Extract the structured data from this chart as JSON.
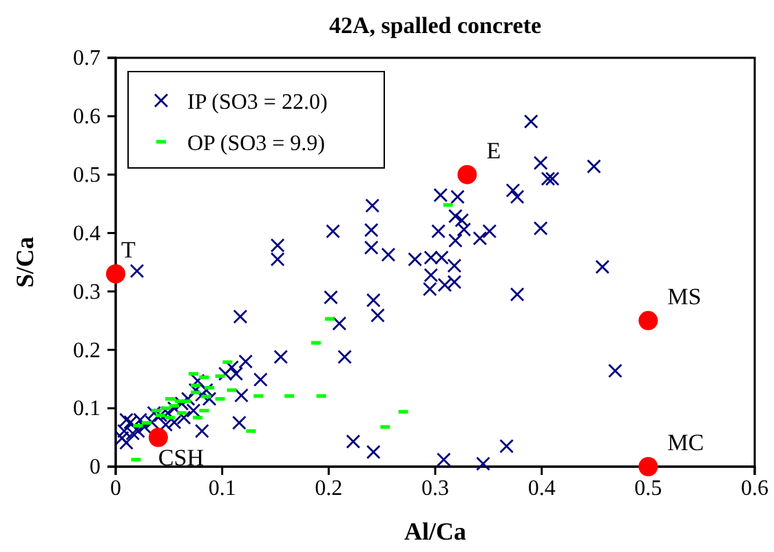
{
  "chart_data": {
    "type": "scatter",
    "title": "42A, spalled concrete",
    "xlabel": "Al/Ca",
    "ylabel": "S/Ca",
    "xlim": [
      0,
      0.6
    ],
    "xticks": [
      0,
      0.1,
      0.2,
      0.3,
      0.4,
      0.5,
      0.6
    ],
    "ylim": [
      0,
      0.7
    ],
    "yticks": [
      0,
      0.1,
      0.2,
      0.3,
      0.4,
      0.5,
      0.6,
      0.7
    ],
    "grid": false,
    "legend": "top left",
    "series": [
      {
        "name": "IP (SO3 = 22.0)",
        "color": "#000080",
        "marker": "cross",
        "x": [
          0.152,
          0.152,
          0.204,
          0.241,
          0.24,
          0.24,
          0.256,
          0.281,
          0.296,
          0.306,
          0.305,
          0.321,
          0.303,
          0.319,
          0.325,
          0.327,
          0.319,
          0.342,
          0.351,
          0.318,
          0.296,
          0.295,
          0.309,
          0.318,
          0.373,
          0.377,
          0.377,
          0.202,
          0.21,
          0.242,
          0.246,
          0.155,
          0.215,
          0.223,
          0.242,
          0.308,
          0.345,
          0.367,
          0.39,
          0.399,
          0.449,
          0.406,
          0.41,
          0.399,
          0.457,
          0.469,
          0.02,
          0.117,
          0.122,
          0.109,
          0.103,
          0.113,
          0.118,
          0.136,
          0.077,
          0.075,
          0.088,
          0.081,
          0.116,
          0.01,
          0.014,
          0.008,
          0.01,
          0.006,
          0.021,
          0.027,
          0.036,
          0.042,
          0.049,
          0.055,
          0.062,
          0.064,
          0.068,
          0.073,
          0.081,
          0.085,
          0.023,
          0.034,
          0.047,
          0.016,
          0.055
        ],
        "values": [
          0.379,
          0.355,
          0.403,
          0.447,
          0.405,
          0.375,
          0.363,
          0.355,
          0.358,
          0.358,
          0.465,
          0.462,
          0.403,
          0.429,
          0.422,
          0.406,
          0.387,
          0.391,
          0.403,
          0.344,
          0.328,
          0.304,
          0.311,
          0.316,
          0.473,
          0.462,
          0.295,
          0.29,
          0.245,
          0.285,
          0.259,
          0.188,
          0.188,
          0.043,
          0.025,
          0.012,
          0.005,
          0.035,
          0.591,
          0.52,
          0.514,
          0.493,
          0.493,
          0.408,
          0.342,
          0.164,
          0.335,
          0.257,
          0.18,
          0.17,
          0.159,
          0.159,
          0.122,
          0.149,
          0.147,
          0.131,
          0.116,
          0.061,
          0.075,
          0.08,
          0.076,
          0.061,
          0.041,
          0.049,
          0.061,
          0.068,
          0.092,
          0.088,
          0.092,
          0.1,
          0.108,
          0.084,
          0.116,
          0.096,
          0.123,
          0.131,
          0.08,
          0.076,
          0.072,
          0.057,
          0.076
        ]
      },
      {
        "name": "OP (SO3 = 9.9)",
        "color": "#00ff00",
        "marker": "square",
        "x": [
          0.312,
          0.201,
          0.188,
          0.163,
          0.193,
          0.27,
          0.253,
          0.019,
          0.021,
          0.029,
          0.038,
          0.042,
          0.051,
          0.047,
          0.055,
          0.06,
          0.066,
          0.051,
          0.062,
          0.073,
          0.083,
          0.075,
          0.088,
          0.075,
          0.085,
          0.098,
          0.083,
          0.077,
          0.105,
          0.109,
          0.127,
          0.134,
          0.098
        ],
        "values": [
          0.448,
          0.253,
          0.212,
          0.121,
          0.121,
          0.094,
          0.068,
          0.012,
          0.07,
          0.075,
          0.096,
          0.088,
          0.116,
          0.1,
          0.104,
          0.112,
          0.112,
          0.084,
          0.092,
          0.159,
          0.153,
          0.139,
          0.135,
          0.127,
          0.12,
          0.116,
          0.096,
          0.084,
          0.179,
          0.131,
          0.061,
          0.121,
          0.155
        ]
      },
      {
        "color": "#ff0000",
        "marker": "circle",
        "x": [
          0,
          0.33,
          0.5,
          0.5,
          0.04
        ],
        "values": [
          0.33,
          0.5,
          0.25,
          0,
          0.05
        ]
      }
    ],
    "annotations": [
      {
        "text": "T",
        "x": 0,
        "y": 0.33
      },
      {
        "text": "E",
        "x": 0.33,
        "y": 0.5
      },
      {
        "text": "MS",
        "x": 0.5,
        "y": 0.25
      },
      {
        "text": "MC",
        "x": 0.5,
        "y": 0
      },
      {
        "text": "CSH",
        "x": 0.04,
        "y": 0.05
      }
    ]
  }
}
